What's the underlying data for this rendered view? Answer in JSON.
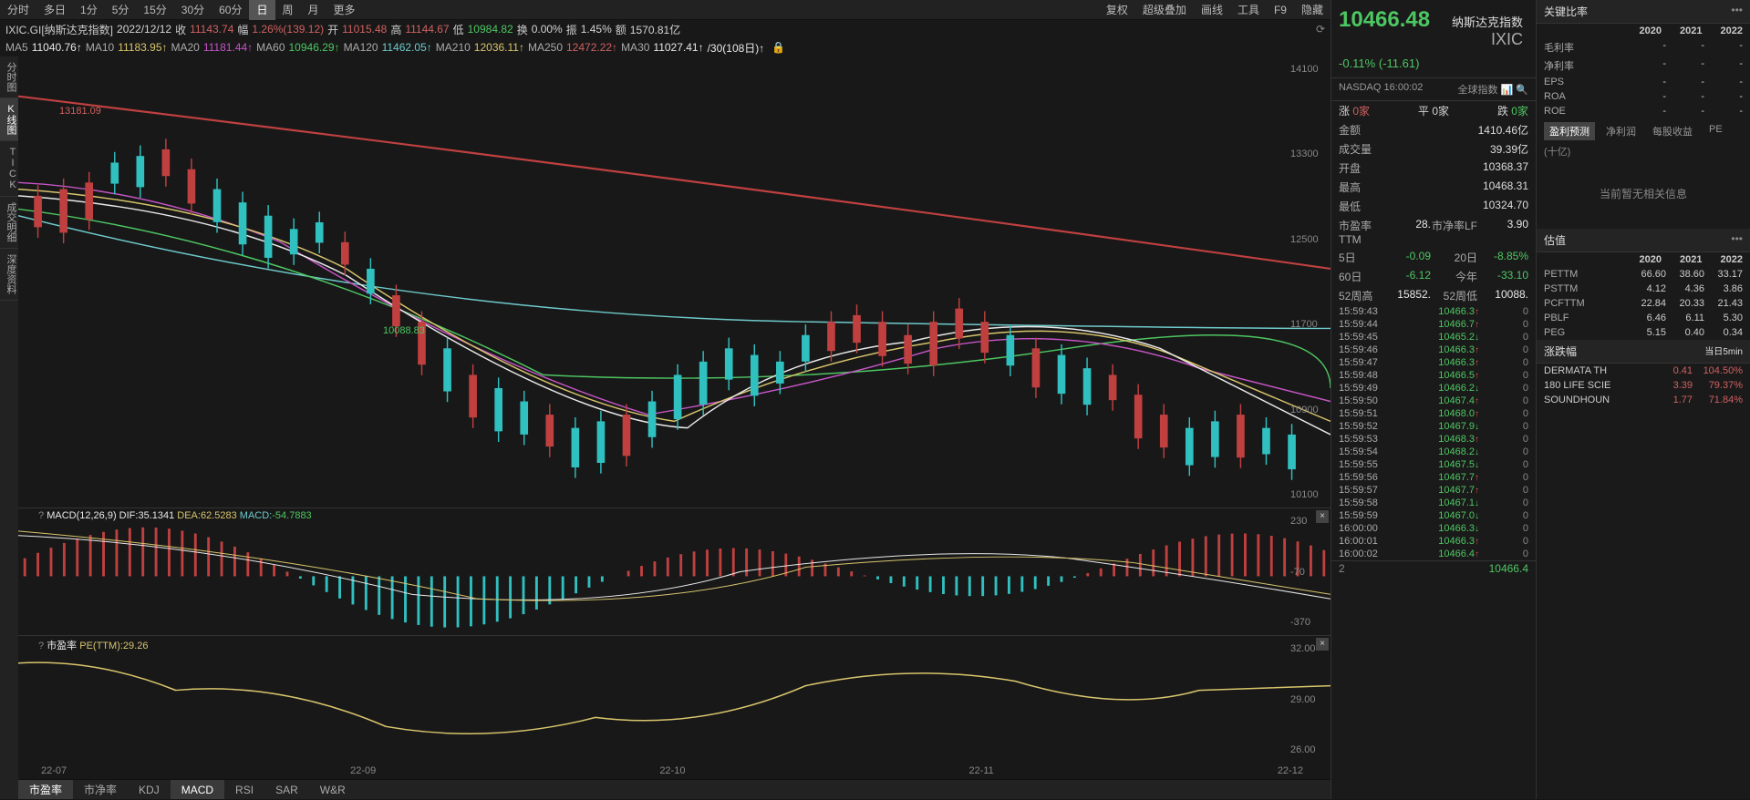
{
  "timeframes": [
    "分时",
    "多日",
    "1分",
    "5分",
    "15分",
    "30分",
    "60分",
    "日",
    "周",
    "月",
    "更多"
  ],
  "active_timeframe": "日",
  "toolbox": [
    "复权",
    "超级叠加",
    "画线",
    "工具",
    "F9",
    "隐藏"
  ],
  "symbol_line": {
    "code": "IXIC.GI[纳斯达克指数]",
    "date": "2022/12/12",
    "close_lbl": "收",
    "close": "11143.74",
    "amp_lbl": "幅",
    "amp": "1.26%(139.12)",
    "open_lbl": "开",
    "open": "11015.48",
    "high_lbl": "高",
    "high": "11144.67",
    "low_lbl": "低",
    "low": "10984.82",
    "turn_lbl": "换",
    "turn": "0.00%",
    "vib_lbl": "振",
    "vib": "1.45%",
    "vol_lbl": "额",
    "vol": "1570.81亿"
  },
  "ma_line": {
    "MA5": {
      "v": "11040.76",
      "c": "white"
    },
    "MA10": {
      "v": "11183.95",
      "c": "yellow"
    },
    "MA20": {
      "v": "11181.44",
      "c": "purple"
    },
    "MA60": {
      "v": "10946.29",
      "c": "green"
    },
    "MA120": {
      "v": "11462.05",
      "c": "cyan"
    },
    "MA210": {
      "v": "12036.11",
      "c": "yellow"
    },
    "MA250": {
      "v": "12472.22",
      "c": "red"
    },
    "MA30": {
      "v": "11027.41",
      "c": "white"
    },
    "extra": "/30(108日)↑"
  },
  "left_tabs": [
    "分时图",
    "K线图",
    "TICK",
    "成交明细",
    "深度资料"
  ],
  "main_chart": {
    "yticks": [
      "14100",
      "13300",
      "12500",
      "11700",
      "10900",
      "10100"
    ],
    "peak_label": "13181.09",
    "trough_label": "10088.83"
  },
  "macd": {
    "title": "MACD(12,26,9)",
    "dif_lbl": "DIF:",
    "dif": "35.1341",
    "dea_lbl": "DEA:",
    "dea": "62.5283",
    "macd_lbl": "MACD:",
    "macd": "-54.7883",
    "yticks": [
      "230",
      "-70",
      "-370"
    ]
  },
  "pe": {
    "title_lbl": "市盈率",
    "title": "PE(TTM):",
    "value": "29.26",
    "yticks": [
      "32.00",
      "29.00",
      "26.00"
    ]
  },
  "time_axis": [
    "22-07",
    "22-09",
    "22-10",
    "22-11",
    "22-12"
  ],
  "indicators": [
    "市盈率",
    "市净率",
    "KDJ",
    "MACD",
    "RSI",
    "SAR",
    "W&R"
  ],
  "active_indicators": [
    "市盈率",
    "MACD"
  ],
  "header": {
    "name": "纳斯达克指数",
    "ticker": "IXIC",
    "price": "10466.48",
    "chg_pct": "-0.11%",
    "chg": "(-11.61)",
    "market": "NASDAQ",
    "time": "16:00:02",
    "icons": "全球指数"
  },
  "adv_line": {
    "up_lbl": "涨",
    "up": "0家",
    "flat_lbl": "平",
    "flat": "0家",
    "down_lbl": "跌",
    "down": "0家"
  },
  "stats": [
    {
      "k": "金额",
      "v": "1410.46亿",
      "c": "white"
    },
    {
      "k": "成交量",
      "v": "39.39亿",
      "c": "white"
    },
    {
      "k": "开盘",
      "v": "10368.37",
      "c": "green"
    },
    {
      "k": "最高",
      "v": "10468.31",
      "c": "green"
    },
    {
      "k": "最低",
      "v": "10324.70",
      "c": "green"
    }
  ],
  "stats2": [
    {
      "k": "市盈率TTM",
      "v": "28.",
      "k2": "市净率LF",
      "v2": "3.90"
    },
    {
      "k": "5日",
      "v": "-0.09",
      "c": "green",
      "k2": "20日",
      "v2": "-8.85%",
      "c2": "green"
    },
    {
      "k": "60日",
      "v": "-6.12",
      "c": "green",
      "k2": "今年",
      "v2": "-33.10",
      "c2": "green"
    },
    {
      "k": "52周高",
      "v": "15852.",
      "k2": "52周低",
      "v2": "10088."
    }
  ],
  "ticks": [
    {
      "t": "15:59:43",
      "p": "10466.3",
      "d": "up",
      "q": "0"
    },
    {
      "t": "15:59:44",
      "p": "10466.7",
      "d": "up",
      "q": "0"
    },
    {
      "t": "15:59:45",
      "p": "10465.2",
      "d": "dn",
      "q": "0"
    },
    {
      "t": "15:59:46",
      "p": "10466.3",
      "d": "up",
      "q": "0"
    },
    {
      "t": "15:59:47",
      "p": "10466.3",
      "d": "up",
      "q": "0"
    },
    {
      "t": "15:59:48",
      "p": "10466.5",
      "d": "up",
      "q": "0"
    },
    {
      "t": "15:59:49",
      "p": "10466.2",
      "d": "dn",
      "q": "0"
    },
    {
      "t": "15:59:50",
      "p": "10467.4",
      "d": "up",
      "q": "0"
    },
    {
      "t": "15:59:51",
      "p": "10468.0",
      "d": "up",
      "q": "0"
    },
    {
      "t": "15:59:52",
      "p": "10467.9",
      "d": "dn",
      "q": "0"
    },
    {
      "t": "15:59:53",
      "p": "10468.3",
      "d": "up",
      "q": "0"
    },
    {
      "t": "15:59:54",
      "p": "10468.2",
      "d": "dn",
      "q": "0"
    },
    {
      "t": "15:59:55",
      "p": "10467.5",
      "d": "dn",
      "q": "0"
    },
    {
      "t": "15:59:56",
      "p": "10467.7",
      "d": "up",
      "q": "0"
    },
    {
      "t": "15:59:57",
      "p": "10467.7",
      "d": "up",
      "q": "0"
    },
    {
      "t": "15:59:58",
      "p": "10467.1",
      "d": "dn",
      "q": "0"
    },
    {
      "t": "15:59:59",
      "p": "10467.0",
      "d": "dn",
      "q": "0"
    },
    {
      "t": "16:00:00",
      "p": "10466.3",
      "d": "dn",
      "q": "0"
    },
    {
      "t": "16:00:01",
      "p": "10466.3",
      "d": "up",
      "q": "0"
    },
    {
      "t": "16:00:02",
      "p": "10466.4",
      "d": "up",
      "q": "0"
    }
  ],
  "tick_footer": {
    "q": "2",
    "p": "10466.4"
  },
  "ratio_hdr": "关键比率",
  "years": [
    "2020",
    "2021",
    "2022"
  ],
  "ratios": [
    {
      "k": "毛利率",
      "v": [
        "-",
        "-",
        "-"
      ]
    },
    {
      "k": "净利率",
      "v": [
        "-",
        "-",
        "-"
      ]
    },
    {
      "k": "EPS",
      "v": [
        "-",
        "-",
        "-"
      ]
    },
    {
      "k": "ROA",
      "v": [
        "-",
        "-",
        "-"
      ]
    },
    {
      "k": "ROE",
      "v": [
        "-",
        "-",
        "-"
      ]
    }
  ],
  "forecast_tabs": [
    "盈利预测",
    "净利润",
    "每股收益",
    "PE"
  ],
  "forecast_unit": "(十亿)",
  "empty_forecast": "当前暂无相关信息",
  "valuation_hdr": "估值",
  "valuations": [
    {
      "k": "PETTM",
      "v": [
        "66.60",
        "38.60",
        "33.17"
      ]
    },
    {
      "k": "PSTTM",
      "v": [
        "4.12",
        "4.36",
        "3.86"
      ]
    },
    {
      "k": "PCFTTM",
      "v": [
        "22.84",
        "20.33",
        "21.43"
      ]
    },
    {
      "k": "PBLF",
      "v": [
        "6.46",
        "6.11",
        "5.30"
      ]
    },
    {
      "k": "PEG",
      "v": [
        "5.15",
        "0.40",
        "0.34"
      ]
    }
  ],
  "movers_hdr": "涨跌幅",
  "movers_tabs": [
    "当日",
    "5min"
  ],
  "movers": [
    {
      "name": "DERMATA TH",
      "chg": "0.41",
      "pct": "104.50%"
    },
    {
      "name": "180 LIFE SCIE",
      "chg": "3.39",
      "pct": "79.37%"
    },
    {
      "name": "SOUNDHOUN",
      "chg": "1.77",
      "pct": "71.84%"
    }
  ]
}
